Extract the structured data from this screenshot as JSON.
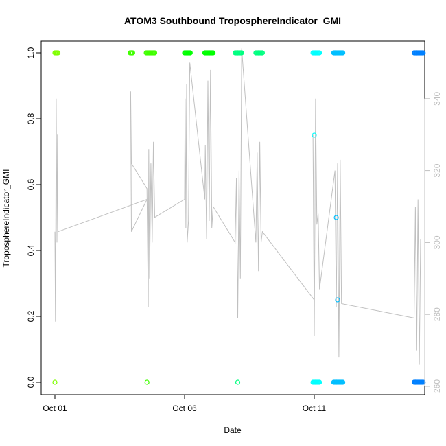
{
  "chart_data": {
    "type": "scatter",
    "title": "ATOM3 Southbound TroposphereIndicator_GMI",
    "xlabel": "Date",
    "ylabel": "TroposphereIndicator_GMI",
    "x_ticks": [
      "Oct 01",
      "Oct 06",
      "Oct 11"
    ],
    "x_tick_days": [
      1,
      6,
      11
    ],
    "xlim": [
      1,
      15
    ],
    "ylim": [
      0,
      1
    ],
    "y_ticks": [
      "0.0",
      "0.2",
      "0.4",
      "0.6",
      "0.8",
      "1.0"
    ],
    "y_tick_values": [
      0,
      0.2,
      0.4,
      0.6,
      0.8,
      1.0
    ],
    "y2_ticks": [
      "260",
      "280",
      "300",
      "320",
      "340"
    ],
    "y2_tick_values": [
      260,
      280,
      300,
      320,
      340
    ],
    "y2lim": [
      259,
      350
    ],
    "colors": {
      "line": "#c0c0c0",
      "axis": "#000000",
      "right_axis": "#c0c0c0",
      "points": [
        "#80ff00",
        "#40ff00",
        "#00ff00",
        "#00ff80",
        "#00ffff",
        "#00bfff",
        "#0080ff"
      ]
    },
    "point_series": {
      "x_day": [
        1.05,
        1.0,
        3.95,
        3.9,
        4.65,
        4.55,
        6.1,
        6.95,
        8.05,
        8.05,
        8.85,
        11.05,
        11.0,
        11.05,
        11.8,
        11.85,
        11.9,
        11.85,
        14.95,
        14.9
      ],
      "y": [
        1.0,
        0.0,
        1.0,
        1.0,
        1.0,
        0.0,
        1.0,
        1.0,
        1.0,
        0.0,
        1.0,
        1.0,
        0.75,
        0.0,
        1.0,
        0.5,
        0.25,
        0.0,
        1.0,
        0.0
      ],
      "color_index": [
        0,
        0,
        1,
        1,
        1,
        1,
        2,
        2,
        3,
        3,
        3,
        4,
        4,
        4,
        5,
        5,
        5,
        5,
        6,
        6
      ]
    },
    "point_clusters": [
      {
        "x_start": 1.0,
        "x_end": 1.12,
        "y": 1.0,
        "color_index": 0
      },
      {
        "x_start": 3.92,
        "x_end": 4.0,
        "y": 1.0,
        "color_index": 1
      },
      {
        "x_start": 4.52,
        "x_end": 4.85,
        "y": 1.0,
        "color_index": 1
      },
      {
        "x_start": 6.0,
        "x_end": 6.22,
        "y": 1.0,
        "color_index": 2
      },
      {
        "x_start": 6.78,
        "x_end": 7.1,
        "y": 1.0,
        "color_index": 2
      },
      {
        "x_start": 7.95,
        "x_end": 8.2,
        "y": 1.0,
        "color_index": 3
      },
      {
        "x_start": 8.75,
        "x_end": 9.0,
        "y": 1.0,
        "color_index": 3
      },
      {
        "x_start": 10.95,
        "x_end": 11.2,
        "y": 1.0,
        "color_index": 4
      },
      {
        "x_start": 10.95,
        "x_end": 11.2,
        "y": 0.0,
        "color_index": 4
      },
      {
        "x_start": 11.75,
        "x_end": 12.1,
        "y": 1.0,
        "color_index": 5
      },
      {
        "x_start": 11.75,
        "x_end": 12.1,
        "y": 0.0,
        "color_index": 5
      },
      {
        "x_start": 14.85,
        "x_end": 15.2,
        "y": 1.0,
        "color_index": 6
      },
      {
        "x_start": 14.85,
        "x_end": 15.2,
        "y": 0.0,
        "color_index": 6
      }
    ],
    "line_series": {
      "x_day": [
        1.0,
        1.02,
        1.05,
        1.08,
        1.1,
        1.12,
        4.55,
        3.95,
        3.92,
        3.95,
        4.55,
        4.6,
        4.62,
        4.65,
        4.7,
        4.75,
        4.8,
        4.85,
        6.0,
        6.02,
        6.05,
        6.08,
        6.1,
        6.15,
        6.2,
        6.78,
        6.8,
        6.85,
        6.9,
        6.95,
        7.0,
        7.05,
        7.1,
        7.95,
        8.0,
        8.05,
        8.1,
        8.15,
        8.2,
        8.75,
        8.8,
        8.85,
        8.9,
        8.95,
        9.0,
        11.0,
        10.95,
        11.0,
        11.05,
        11.1,
        11.15,
        11.2,
        11.8,
        11.85,
        11.9,
        11.95,
        12.0,
        12.05,
        14.85,
        14.9,
        14.95,
        15.0,
        15.05,
        15.1
      ],
      "y2": [
        303,
        278,
        340,
        300,
        330,
        303,
        312,
        303,
        342,
        322,
        315,
        282,
        326,
        290,
        322,
        300,
        328,
        307,
        312,
        340,
        304,
        344,
        300,
        306,
        350,
        312,
        327,
        301,
        345,
        306,
        348,
        304,
        310,
        300,
        318,
        279,
        320,
        290,
        354,
        300,
        325,
        292,
        328,
        300,
        303,
        284,
        330,
        274,
        340,
        305,
        308,
        287,
        320,
        282,
        322,
        268,
        323,
        283,
        279,
        310,
        270,
        312,
        266,
        301
      ]
    }
  }
}
